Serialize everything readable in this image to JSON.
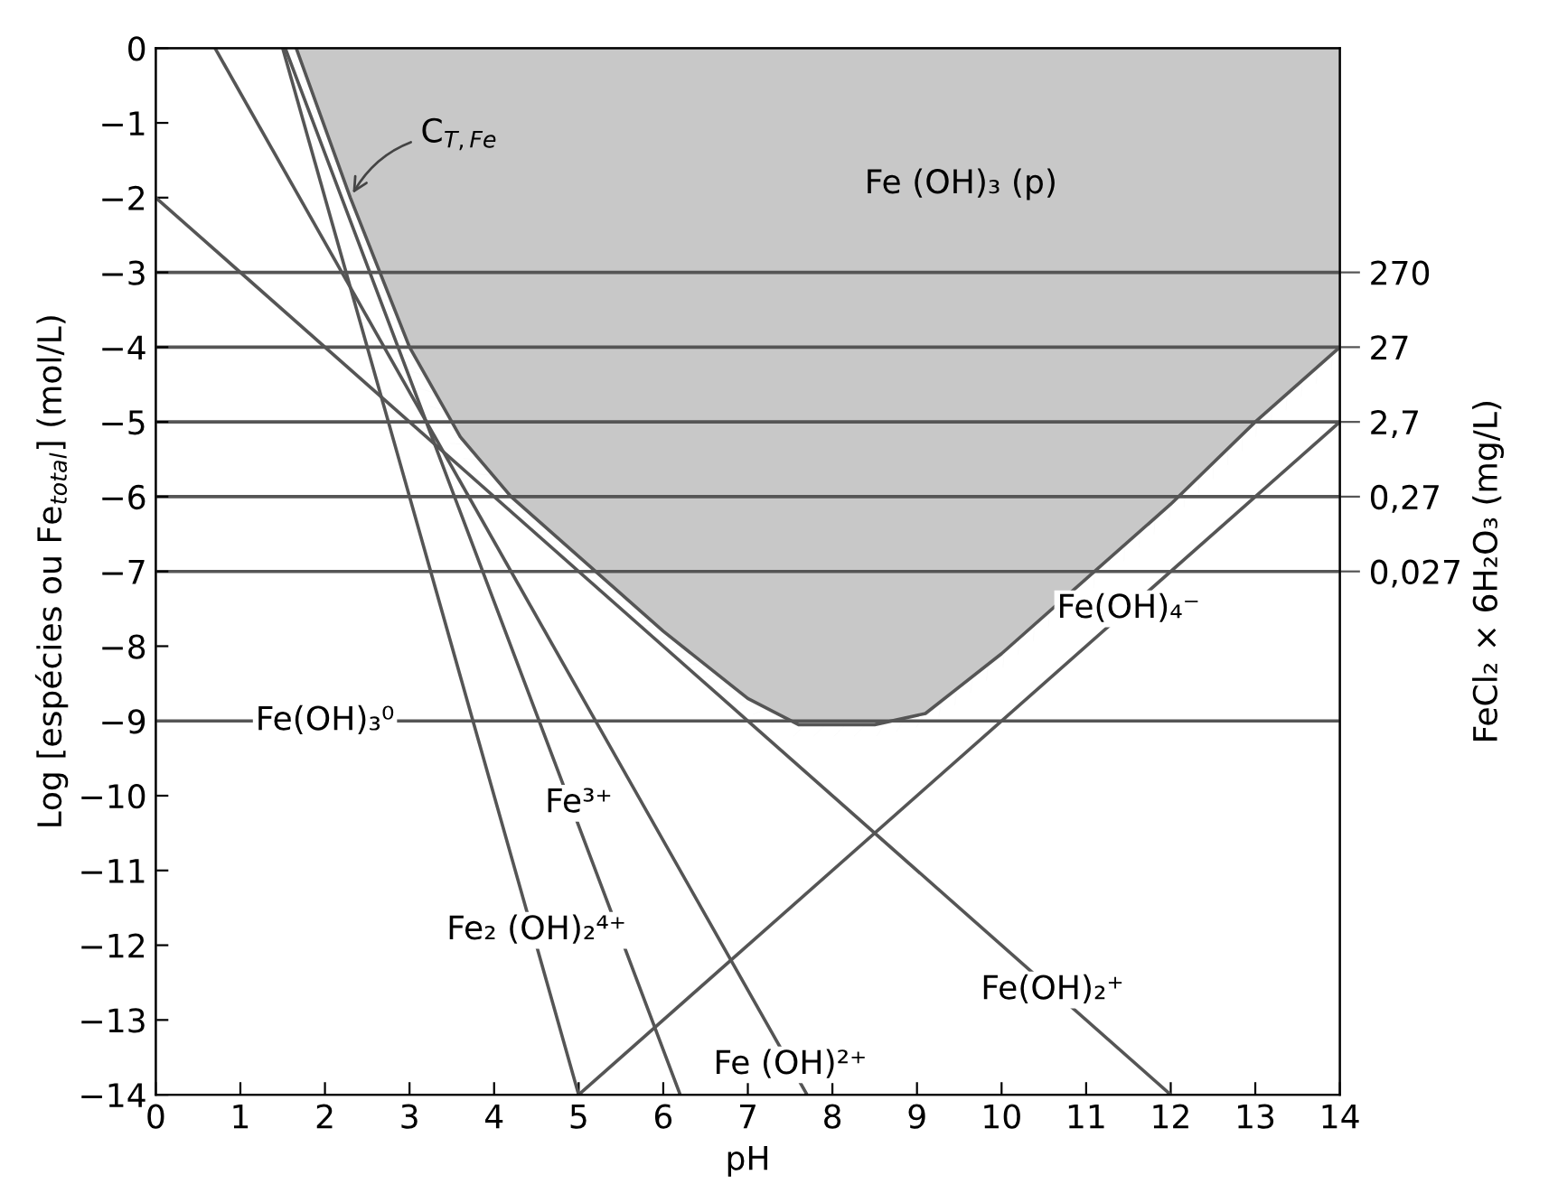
{
  "chart_data": {
    "type": "line",
    "xlabel": "pH",
    "ylabel": "Log [espécies ou Fe$_{total}$] (mol/L)",
    "y2label": "FeCl₂ × 6H₂O₃ (mg/L)",
    "xlim": [
      0,
      14
    ],
    "ylim": [
      -14,
      0
    ],
    "xticks": [
      0,
      1,
      2,
      3,
      4,
      5,
      6,
      7,
      8,
      9,
      10,
      11,
      12,
      13,
      14
    ],
    "yticks": [
      0,
      -1,
      -2,
      -3,
      -4,
      -5,
      -6,
      -7,
      -8,
      -9,
      -10,
      -11,
      -12,
      -13,
      -14
    ],
    "log": "y2",
    "y2lim": [
      2.7e-09,
      270000
    ],
    "y2ticks": [
      {
        "value": 270,
        "label": "270"
      },
      {
        "value": 27,
        "label": "27"
      },
      {
        "value": 2.7,
        "label": "2,7"
      },
      {
        "value": 0.27,
        "label": "0,27"
      },
      {
        "value": 0.027,
        "label": "0,027"
      }
    ],
    "grid": false,
    "legend": false,
    "ref_lines": [
      {
        "axis": "y",
        "value": -3,
        "color": "#555555"
      },
      {
        "axis": "y",
        "value": -4,
        "color": "#555555"
      },
      {
        "axis": "y",
        "value": -5,
        "color": "#555555"
      },
      {
        "axis": "y",
        "value": -6,
        "color": "#555555"
      },
      {
        "axis": "y",
        "value": -7,
        "color": "#555555"
      }
    ],
    "series": [
      {
        "type": "area",
        "color": "#555555",
        "x": [
          1.66,
          2.3,
          3.0,
          3.6,
          4.2,
          5,
          6,
          7,
          7.6,
          8.5,
          9.1,
          10,
          11,
          12,
          13,
          14
        ],
        "values": [
          0,
          -2,
          -4,
          -5.2,
          -6,
          -6.8,
          -7.8,
          -8.7,
          -9.05,
          -9.05,
          -8.9,
          -8.1,
          -7.1,
          -6.1,
          -5.0,
          -4
        ]
      },
      {
        "color": "#555555",
        "x": [
          0,
          14
        ],
        "values": [
          -9,
          -9
        ]
      },
      {
        "color": "#555555",
        "x": [
          5,
          14
        ],
        "values": [
          -14,
          -5
        ]
      },
      {
        "color": "#555555",
        "x": [
          0,
          12
        ],
        "values": [
          -2,
          -14
        ]
      },
      {
        "color": "#555555",
        "x": [
          0.7,
          7.7
        ],
        "values": [
          0,
          -14
        ]
      },
      {
        "color": "#555555",
        "x": [
          1.53,
          6.2
        ],
        "values": [
          0,
          -14
        ]
      },
      {
        "color": "#555555",
        "x": [
          1.5,
          5.0
        ],
        "values": [
          0,
          -14
        ]
      }
    ],
    "annotations": [
      {
        "text": "C$_{T,Fe}$",
        "x": 2.3,
        "y": -2
      },
      "Fe (OH)₃ (p)",
      {
        "text": "Fe(OH)₃⁰",
        "x": 2.0,
        "y": -9
      },
      {
        "text": "Fe³⁺",
        "x": 5.0,
        "y": -10.1
      },
      {
        "text": "Fe₂ (OH)₂⁴⁺",
        "x": 4.5,
        "y": -11.8
      },
      {
        "text": "Fe (OH)²⁺",
        "x": 7.5,
        "y": -13.6
      },
      {
        "text": "Fe(OH)₂⁺",
        "x": 10.6,
        "y": -12.6
      },
      {
        "text": "Fe(OH)₄⁻",
        "x": 11.5,
        "y": -7.5
      }
    ]
  }
}
